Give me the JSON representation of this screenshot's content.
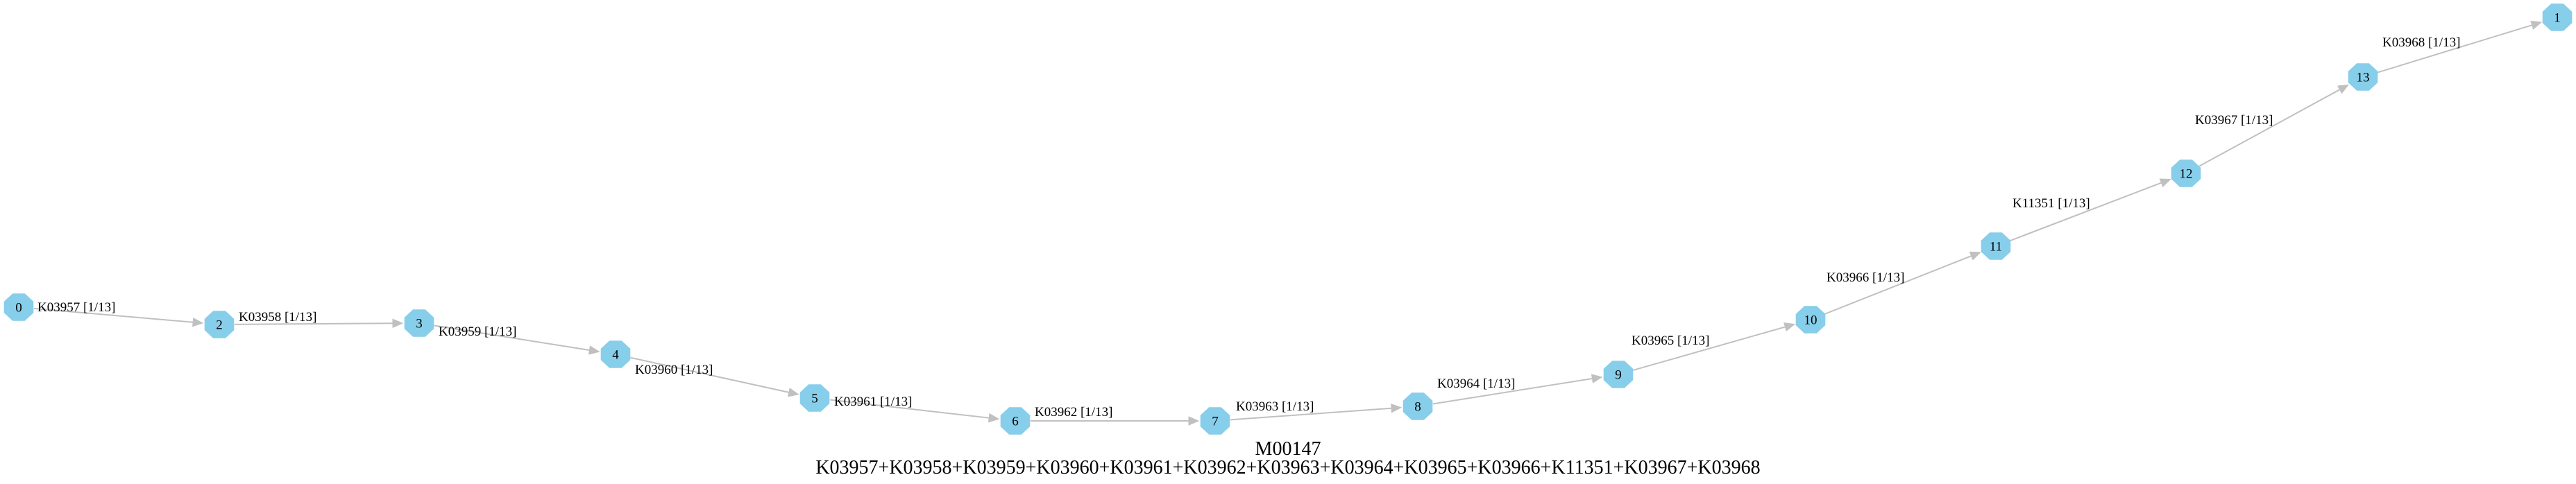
{
  "diagram": {
    "nodes": [
      "0",
      "1",
      "2",
      "3",
      "4",
      "5",
      "6",
      "7",
      "8",
      "9",
      "10",
      "11",
      "12",
      "13"
    ],
    "edges": [
      {
        "from": "0",
        "to": "2",
        "label": "K03957 [1/13]"
      },
      {
        "from": "2",
        "to": "3",
        "label": "K03958 [1/13]"
      },
      {
        "from": "3",
        "to": "4",
        "label": "K03959 [1/13]"
      },
      {
        "from": "4",
        "to": "5",
        "label": "K03960 [1/13]"
      },
      {
        "from": "5",
        "to": "6",
        "label": "K03961 [1/13]"
      },
      {
        "from": "6",
        "to": "7",
        "label": "K03962 [1/13]"
      },
      {
        "from": "7",
        "to": "8",
        "label": "K03963 [1/13]"
      },
      {
        "from": "8",
        "to": "9",
        "label": "K03964 [1/13]"
      },
      {
        "from": "9",
        "to": "10",
        "label": "K03965 [1/13]"
      },
      {
        "from": "10",
        "to": "11",
        "label": "K03966 [1/13]"
      },
      {
        "from": "11",
        "to": "12",
        "label": "K11351 [1/13]"
      },
      {
        "from": "12",
        "to": "13",
        "label": "K03967 [1/13]"
      },
      {
        "from": "13",
        "to": "1",
        "label": "K03968 [1/13]"
      }
    ],
    "colors": {
      "node_fill": "#87ceeb",
      "edge": "#c0c0c0",
      "text": "#000000"
    }
  },
  "caption": {
    "module_id": "M00147",
    "definition": "K03957+K03958+K03959+K03960+K03961+K03962+K03963+K03964+K03965+K03966+K11351+K03967+K03968"
  }
}
